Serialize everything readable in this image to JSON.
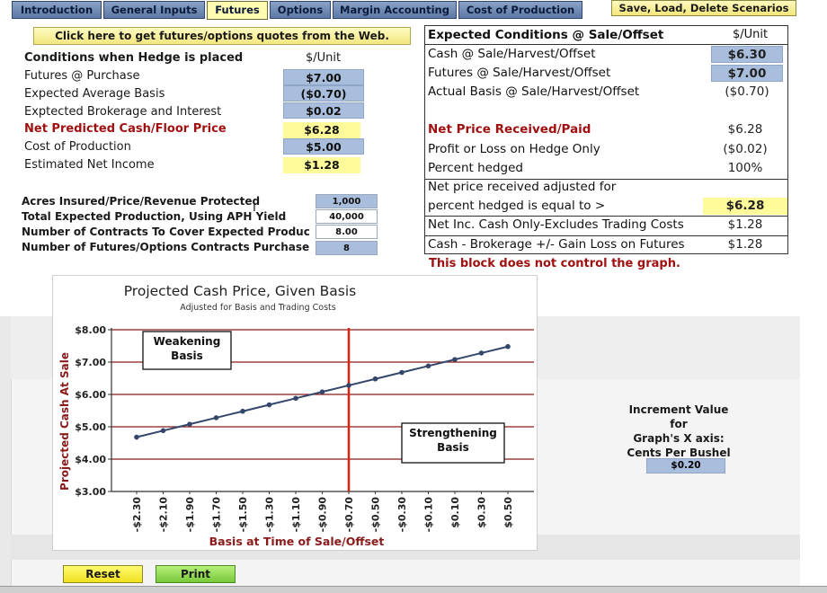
{
  "tabs": [
    {
      "label": "Introduction",
      "active": false
    },
    {
      "label": "General Inputs",
      "active": false
    },
    {
      "label": "Futures",
      "active": true
    },
    {
      "label": "Options",
      "active": false
    },
    {
      "label": "Margin Accounting",
      "active": false
    },
    {
      "label": "Cost of Production",
      "active": false
    }
  ],
  "scenario_button": "Save, Load, Delete Scenarios",
  "quotes_button": "Click here to get futures/options quotes from the Web.",
  "conditions": {
    "header": "Conditions when Hedge is placed",
    "unit_header": "$/Unit",
    "rows": [
      {
        "label": "Futures @ Purchase",
        "value": "$7.00"
      },
      {
        "label": "Expected Average Basis",
        "value": "($0.70)"
      },
      {
        "label": "Exptected Brokerage and Interest",
        "value": "$0.02"
      },
      {
        "label": "Net Predicted Cash/Floor Price",
        "value": "$6.28"
      },
      {
        "label": "Cost of Production",
        "value": "$5.00"
      },
      {
        "label": "Estimated Net Income",
        "value": "$1.28"
      }
    ]
  },
  "production": {
    "rows": [
      {
        "label": "Acres Insured/Price/Revenue Protected",
        "value": "1,000"
      },
      {
        "label": "Total Expected Production, Using APH Yield",
        "value": "40,000"
      },
      {
        "label": "Number of Contracts To Cover Expected Productio",
        "value": "8.00"
      },
      {
        "label": "Number of  Futures/Options Contracts Purchased",
        "value": "8"
      }
    ]
  },
  "expected": {
    "header": "Expected Conditions @ Sale/Offset",
    "unit_header": "$/Unit",
    "rows": [
      {
        "label": "Cash @ Sale/Harvest/Offset",
        "value": "$6.30"
      },
      {
        "label": "Futures @ Sale/Harvest/Offset",
        "value": "$7.00"
      },
      {
        "label": "Actual Basis @ Sale/Harvest/Offset",
        "value": "($0.70)"
      },
      {
        "label": "Net Price Received/Paid",
        "value": "$6.28"
      },
      {
        "label": "Profit or Loss on Hedge Only",
        "value": "($0.02)"
      },
      {
        "label": "Percent hedged",
        "value": "100%"
      },
      {
        "label": "Net price received adjusted for",
        "value": ""
      },
      {
        "label": "percent hedged is equal to >",
        "value": "$6.28"
      },
      {
        "label": "Net Inc. Cash Only-Excludes Trading Costs",
        "value": "$1.28"
      },
      {
        "label": "Cash - Brokerage +/- Gain Loss on Futures",
        "value": "$1.28"
      }
    ],
    "note": "This block does not control the graph."
  },
  "chart_data": {
    "type": "line",
    "title": "Projected Cash Price, Given Basis",
    "subtitle": "Adjusted for Basis and Trading Costs",
    "xlabel": "Basis at Time of Sale/Offset",
    "ylabel": "Projected Cash At Sale",
    "categories": [
      "-$2.30",
      "-$2.10",
      "-$1.90",
      "-$1.70",
      "-$1.50",
      "-$1.30",
      "-$1.10",
      "-$0.90",
      "-$0.70",
      "-$0.50",
      "-$0.30",
      "-$0.10",
      "$0.10",
      "$0.30",
      "$0.50"
    ],
    "x": [
      -2.3,
      -2.1,
      -1.9,
      -1.7,
      -1.5,
      -1.3,
      -1.1,
      -0.9,
      -0.7,
      -0.5,
      -0.3,
      -0.1,
      0.1,
      0.3,
      0.5
    ],
    "values": [
      4.68,
      4.88,
      5.08,
      5.28,
      5.48,
      5.68,
      5.88,
      6.08,
      6.28,
      6.48,
      6.68,
      6.88,
      7.08,
      7.28,
      7.48
    ],
    "ylim": [
      3.0,
      8.0
    ],
    "yticks": [
      "$3.00",
      "$4.00",
      "$5.00",
      "$6.00",
      "$7.00",
      "$8.00"
    ],
    "ytick_values": [
      3,
      4,
      5,
      6,
      7,
      8
    ],
    "vertical_marker_x": -0.7,
    "annotations": [
      {
        "text": [
          "Weakening",
          "Basis"
        ]
      },
      {
        "text": [
          "Strengthening",
          "Basis"
        ]
      }
    ],
    "line_color": "#34476b",
    "grid_color": "#8b1a1a",
    "marker_color": "#e02010",
    "grid": true
  },
  "increment": {
    "title_lines": [
      "Increment Value for",
      "Graph's X axis:",
      "Cents Per Bushel"
    ],
    "value": "$0.20"
  },
  "buttons": {
    "reset": "Reset",
    "print": "Print"
  }
}
